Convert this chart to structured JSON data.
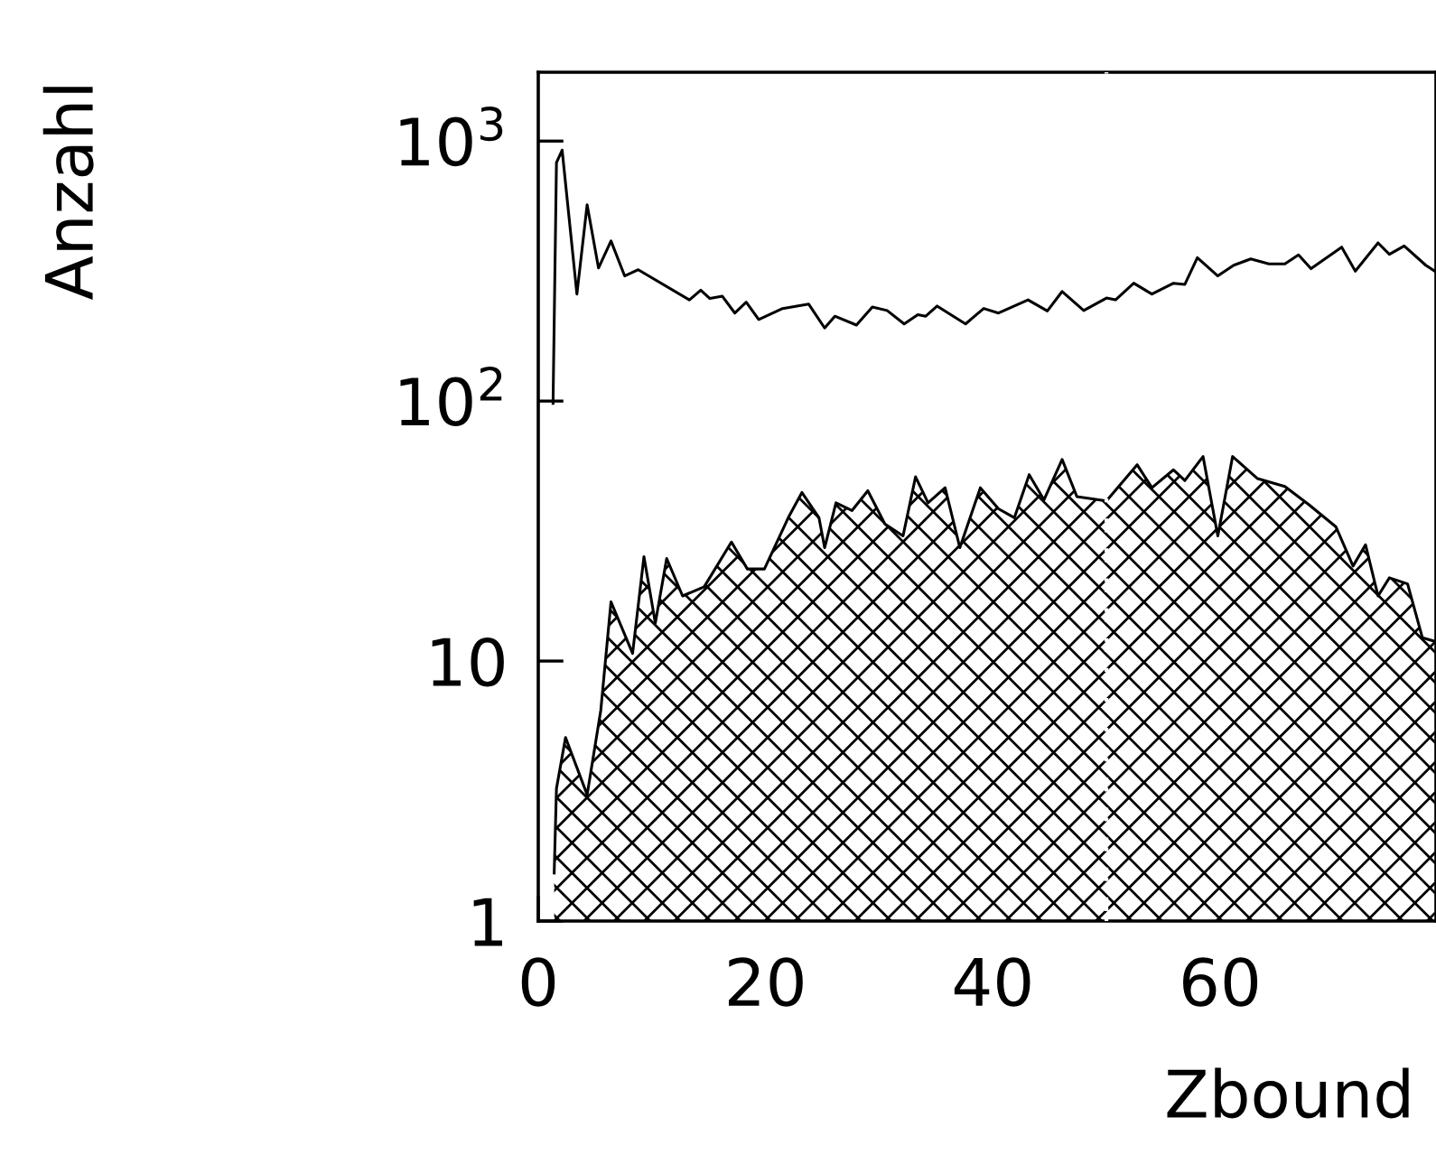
{
  "chart_data": {
    "type": "line",
    "xlabel": "Zbound",
    "ylabel": "Anzahl",
    "log": "y",
    "grid": false,
    "xlim": [
      0,
      79
    ],
    "xticks": [
      0,
      20,
      40,
      60
    ],
    "ylim": [
      1,
      1840
    ],
    "yticks": [
      1,
      10,
      {
        "value": 100,
        "label": "10$^{2}$"
      },
      {
        "value": 1000,
        "label": "10$^{3}$"
      }
    ],
    "series": [
      {
        "type": "line",
        "color": "#000000",
        "x": [
          1.3,
          1.6,
          2.1,
          3.4,
          4.3,
          5.3,
          6.4,
          7.6,
          8.8,
          13.3,
          14.3,
          15.1,
          16.2,
          17.3,
          18.3,
          19.4,
          21.5,
          23.8,
          25.2,
          26.1,
          28.0,
          29.4,
          30.7,
          32.2,
          33.4,
          34.1,
          35.1,
          37.6,
          38.4,
          39.2,
          40.5,
          43.1,
          44.8,
          46.1,
          48.0,
          50.0,
          50.8,
          52.4,
          54.0,
          55.9,
          56.9,
          58.0,
          59.8,
          61.2,
          62.7,
          64.3,
          65.7,
          66.9,
          68.0,
          70.7,
          71.9,
          73.9,
          74.9,
          76.2,
          78.1,
          78.9
        ],
        "values": [
          98,
          826,
          923,
          258,
          569,
          325,
          413,
          303,
          320,
          245,
          267,
          248,
          253,
          218,
          240,
          206,
          227,
          236,
          191,
          212,
          196,
          230,
          223,
          198,
          215,
          212,
          232,
          198,
          212,
          227,
          218,
          245,
          222,
          264,
          223,
          249,
          245,
          284,
          258,
          284,
          281,
          356,
          303,
          333,
          352,
          337,
          337,
          365,
          323,
          391,
          316,
          406,
          367,
          395,
          333,
          316
        ]
      },
      {
        "type": "area",
        "color": "#000000",
        "x": [
          1.4,
          1.6,
          2.4,
          4.3,
          5.5,
          6.4,
          8.3,
          9.3,
          10.3,
          11.3,
          12.7,
          14.6,
          17.0,
          18.4,
          19.9,
          22.0,
          23.2,
          24.7,
          25.2,
          26.2,
          27.6,
          29.0,
          30.5,
          32.1,
          33.2,
          34.3,
          35.8,
          37.1,
          38.9,
          40.5,
          41.9,
          43.2,
          44.5,
          46.1,
          47.4,
          50.0,
          52.7,
          54.0,
          55.9,
          56.9,
          58.5,
          59.8,
          61.1,
          63.3,
          65.7,
          67.8,
          70.2,
          71.7,
          72.8,
          73.9,
          74.9,
          76.5,
          77.8,
          78.9
        ],
        "values": [
          1.53,
          3.23,
          5.08,
          3.06,
          6.46,
          16.9,
          10.7,
          25.2,
          14.0,
          24.8,
          17.8,
          19.3,
          28.7,
          22.6,
          22.6,
          35.6,
          44.5,
          35.6,
          27.3,
          40.6,
          37.9,
          45.2,
          33.7,
          30.3,
          51.1,
          40.6,
          46.4,
          27.3,
          46.4,
          38.5,
          35.6,
          52.1,
          41.7,
          59.6,
          42.9,
          41.3,
          56.9,
          46.4,
          54.4,
          49.5,
          61.2,
          30.3,
          61.2,
          50.3,
          46.9,
          40.0,
          32.8,
          23.2,
          28.0,
          17.8,
          20.9,
          19.8,
          12.3,
          11.9
        ]
      }
    ],
    "ref_lines": [
      {
        "axis": "x",
        "value": 50,
        "color": "#ffffff",
        "line_style": "dotted"
      }
    ]
  }
}
